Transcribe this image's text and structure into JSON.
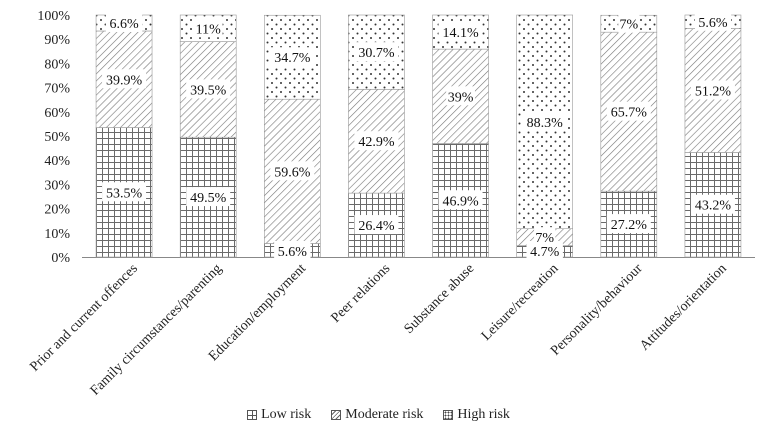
{
  "chart_data": {
    "type": "bar",
    "stacked": true,
    "categories": [
      "Prior and current offences",
      "Family circumstances/parenting",
      "Education/employment",
      "Peer relations",
      "Substance abuse",
      "Leisure/recreation",
      "Personality/behaviour",
      "Attitudes/orientation"
    ],
    "series": [
      {
        "name": "Low risk",
        "values": [
          53.5,
          49.5,
          5.6,
          26.4,
          46.9,
          4.7,
          27.2,
          43.2
        ],
        "labels": [
          "53.5%",
          "49.5%",
          "5.6%",
          "26.4%",
          "46.9%",
          "4.7%",
          "27.2%",
          "43.2%"
        ]
      },
      {
        "name": "Moderate risk",
        "values": [
          39.9,
          39.5,
          59.6,
          42.9,
          39,
          7,
          65.7,
          51.2
        ],
        "labels": [
          "39.9%",
          "39.5%",
          "59.6%",
          "42.9%",
          "39%",
          "7%",
          "65.7%",
          "51.2%"
        ]
      },
      {
        "name": "High risk",
        "values": [
          6.6,
          11,
          34.7,
          30.7,
          14.1,
          88.3,
          7,
          5.6
        ],
        "labels": [
          "6.6%",
          "11%",
          "34.7%",
          "30.7%",
          "14.1%",
          "88.3%",
          "7%",
          "5.6%"
        ]
      }
    ],
    "yticks": [
      "0%",
      "10%",
      "20%",
      "30%",
      "40%",
      "50%",
      "60%",
      "70%",
      "80%",
      "90%",
      "100%"
    ],
    "ylim": [
      0,
      100
    ],
    "legend_position": "bottom"
  },
  "legend": {
    "low": "Low risk",
    "moderate": "Moderate risk",
    "high": "High risk"
  }
}
